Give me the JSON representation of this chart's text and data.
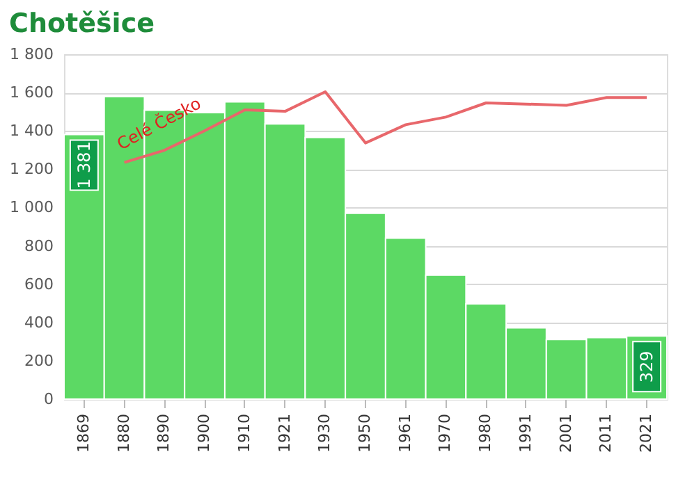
{
  "chart_data": {
    "type": "bar",
    "title": "Chotěšice",
    "categories": [
      "1869",
      "1880",
      "1890",
      "1900",
      "1910",
      "1921",
      "1930",
      "1950",
      "1961",
      "1970",
      "1980",
      "1991",
      "2001",
      "2011",
      "2021"
    ],
    "series": [
      {
        "color": "#5cd964",
        "values": [
          1381,
          1579,
          1508,
          1495,
          1551,
          1436,
          1365,
          970,
          840,
          647,
          497,
          372,
          311,
          321,
          329
        ],
        "value_labels": [
          "1 381",
          null,
          null,
          null,
          null,
          null,
          null,
          null,
          null,
          null,
          null,
          null,
          null,
          null,
          "329"
        ]
      },
      {
        "type": "line",
        "name": "Celé Česko",
        "color": "#e8676b",
        "values": [
          null,
          1235,
          1299,
          1401,
          1510,
          1502,
          1604,
          1337,
          1432,
          1472,
          1546,
          1540,
          1533,
          1574,
          1574
        ]
      }
    ],
    "ylim": [
      0,
      1800
    ],
    "yticks": [
      {
        "value": 0,
        "label": "0"
      },
      {
        "value": 200,
        "label": "200"
      },
      {
        "value": 400,
        "label": "400"
      },
      {
        "value": 600,
        "label": "600"
      },
      {
        "value": 800,
        "label": "800"
      },
      {
        "value": 1000,
        "label": "1 000"
      },
      {
        "value": 1200,
        "label": "1 200"
      },
      {
        "value": 1400,
        "label": "1 400"
      },
      {
        "value": 1600,
        "label": "1 600"
      },
      {
        "value": 1800,
        "label": "1 800"
      }
    ],
    "grid": "y"
  }
}
